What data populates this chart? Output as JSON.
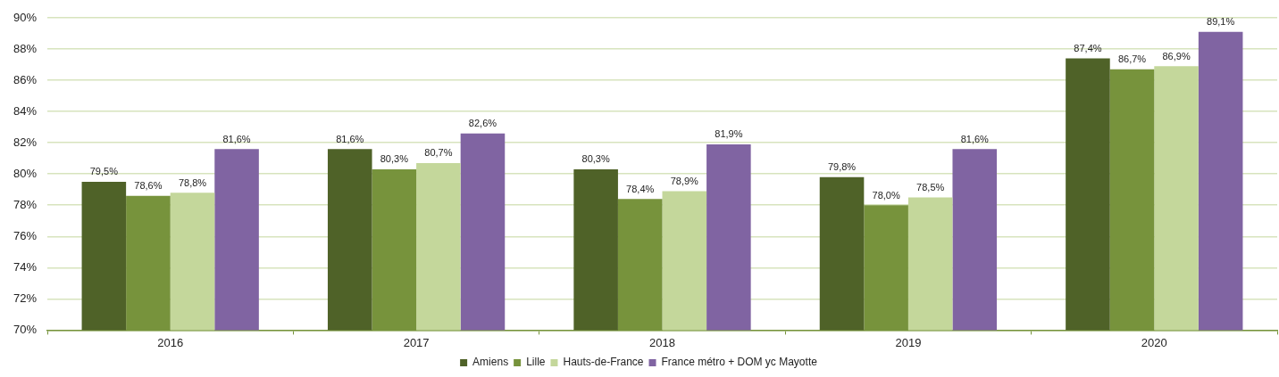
{
  "chart_data": {
    "type": "bar",
    "categories": [
      "2016",
      "2017",
      "2018",
      "2019",
      "2020"
    ],
    "series": [
      {
        "name": "Amiens",
        "color": "#4f6228",
        "values": [
          79.5,
          81.6,
          80.3,
          79.8,
          87.4
        ],
        "value_labels": [
          "79,5%",
          "81,6%",
          "80,3%",
          "79,8%",
          "87,4%"
        ]
      },
      {
        "name": "Lille",
        "color": "#77933c",
        "values": [
          78.6,
          80.3,
          78.4,
          78.0,
          86.7
        ],
        "value_labels": [
          "78,6%",
          "80,3%",
          "78,4%",
          "78,0%",
          "86,7%"
        ]
      },
      {
        "name": "Hauts-de-France",
        "color": "#c4d79b",
        "values": [
          78.8,
          80.7,
          78.9,
          78.5,
          86.9
        ],
        "value_labels": [
          "78,8%",
          "80,7%",
          "78,9%",
          "78,5%",
          "86,9%"
        ]
      },
      {
        "name": "France métro + DOM yc Mayotte",
        "color": "#8064a2",
        "values": [
          81.6,
          82.6,
          81.9,
          81.6,
          89.1
        ],
        "value_labels": [
          "81,6%",
          "82,6%",
          "81,9%",
          "81,6%",
          "89,1%"
        ]
      }
    ],
    "ylim": [
      70,
      90
    ],
    "yticks": [
      {
        "value": 70,
        "label": "70%"
      },
      {
        "value": 72,
        "label": "72%"
      },
      {
        "value": 74,
        "label": "74%"
      },
      {
        "value": 76,
        "label": "76%"
      },
      {
        "value": 78,
        "label": "78%"
      },
      {
        "value": 80,
        "label": "80%"
      },
      {
        "value": 82,
        "label": "82%"
      },
      {
        "value": 84,
        "label": "84%"
      },
      {
        "value": 86,
        "label": "86%"
      },
      {
        "value": 88,
        "label": "88%"
      },
      {
        "value": 90,
        "label": "90%"
      }
    ],
    "grid": "y",
    "legend": "bottom"
  }
}
